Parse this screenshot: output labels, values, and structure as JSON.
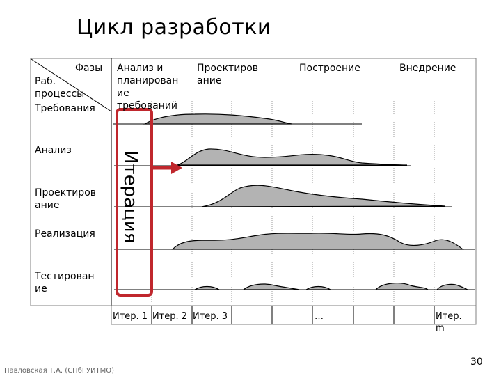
{
  "title": "Цикл разработки",
  "header": {
    "phases_label": "Фазы",
    "processes_label": "Раб.\nпроцессы",
    "phases": [
      "Анализ и\nпланирован\nие\nтребований",
      "Проектиров\nание",
      "Построение",
      "Внедрение"
    ]
  },
  "processes": [
    "Требования",
    "Анализ",
    "Проектиров\nание",
    "Реализация",
    "Тестирован\nие"
  ],
  "iteration_label": "Итерация",
  "iterations": [
    "Итер. 1",
    "Итер. 2",
    "Итер. 3",
    "…",
    "Итер.\nm"
  ],
  "footer": "Павловская Т.А. (СПбГУИТМО)",
  "page_number": "30",
  "colors": {
    "highlight_frame": "#c0272d",
    "arrow": "#c0272d",
    "curve_fill": "#b3b3b3",
    "grid": "#9a9a9a"
  }
}
